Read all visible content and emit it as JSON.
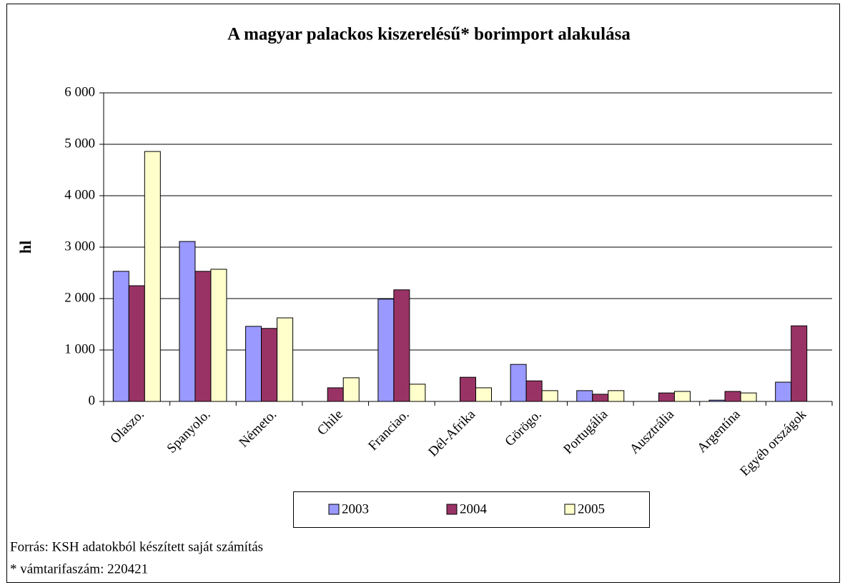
{
  "chart_data": {
    "type": "bar",
    "title": "A magyar palackos kiszerelésű* borimport alakulása",
    "y_label": "hl",
    "categories": [
      "Olaszo.",
      "Spanyolo.",
      "Németo.",
      "Chile",
      "Franciao.",
      "Dél-Afrika",
      "Görögo.",
      "Portugália",
      "Ausztrália",
      "Argentína",
      "Egyéb országok"
    ],
    "series": [
      {
        "name": "2003",
        "color": "#9999ff",
        "values": [
          2530,
          3110,
          1460,
          0,
          1990,
          0,
          720,
          210,
          0,
          25,
          375
        ]
      },
      {
        "name": "2004",
        "color": "#993366",
        "values": [
          2250,
          2530,
          1420,
          265,
          2170,
          470,
          400,
          140,
          165,
          195,
          1470
        ]
      },
      {
        "name": "2005",
        "color": "#ffffcc",
        "values": [
          4860,
          2570,
          1625,
          460,
          335,
          265,
          210,
          210,
          195,
          165,
          0
        ]
      }
    ],
    "ylim": [
      0,
      6000
    ],
    "yticks": [
      0,
      {
        "value": 1000,
        "label": "1 000"
      },
      {
        "value": 2000,
        "label": "2 000"
      },
      {
        "value": 3000,
        "label": "3 000"
      },
      {
        "value": 4000,
        "label": "4 000"
      },
      {
        "value": 5000,
        "label": "5 000"
      },
      {
        "value": 6000,
        "label": "6 000"
      }
    ],
    "grid": true,
    "legend": "bottom",
    "notes": [
      "Forrás: KSH adatokból készített saját számítás",
      "* vámtarifaszám: 220421"
    ]
  }
}
